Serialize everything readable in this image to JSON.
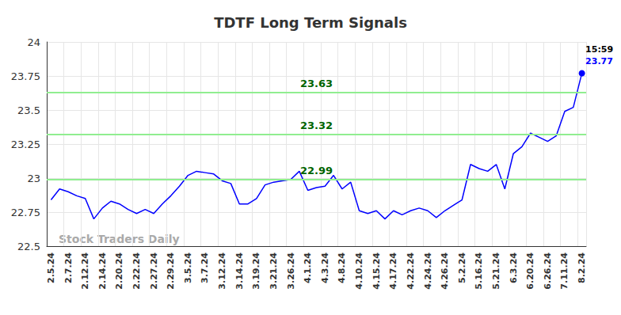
{
  "chart_data": {
    "type": "line",
    "title": "TDTF Long Term Signals",
    "watermark": "Stock Traders Daily",
    "last_label": "15:59",
    "color": "#0000ff",
    "grid": true,
    "categories": [
      "2.5.24",
      null,
      "2.7.24",
      null,
      "2.12.24",
      null,
      "2.14.24",
      null,
      "2.20.24",
      null,
      "2.22.24",
      null,
      "2.27.24",
      null,
      "2.29.24",
      null,
      "3.5.24",
      null,
      "3.7.24",
      null,
      "3.12.24",
      null,
      "3.14.24",
      null,
      "3.19.24",
      null,
      "3.21.24",
      null,
      "3.26.24",
      null,
      "4.1.24",
      null,
      "4.3.24",
      null,
      "4.8.24",
      null,
      "4.10.24",
      null,
      "4.15.24",
      null,
      "4.17.24",
      null,
      "4.22.24",
      null,
      "4.24.24",
      null,
      "4.26.24",
      null,
      "5.2.24",
      null,
      "5.16.24",
      null,
      "5.21.24",
      null,
      "6.3.24",
      null,
      "6.20.24",
      null,
      "6.26.24",
      null,
      "7.11.24",
      null,
      "8.2.24"
    ],
    "values": [
      22.84,
      22.92,
      22.9,
      22.87,
      22.85,
      22.7,
      22.78,
      22.83,
      22.81,
      22.77,
      22.74,
      22.77,
      22.74,
      22.81,
      22.87,
      22.94,
      23.02,
      23.05,
      23.04,
      23.03,
      22.98,
      22.96,
      22.81,
      22.81,
      22.85,
      22.95,
      22.97,
      22.98,
      22.99,
      23.05,
      22.91,
      22.93,
      22.94,
      23.02,
      22.92,
      22.97,
      22.76,
      22.74,
      22.76,
      22.7,
      22.76,
      22.73,
      22.76,
      22.78,
      22.76,
      22.71,
      22.76,
      22.8,
      22.84,
      23.1,
      23.07,
      23.05,
      23.1,
      22.92,
      23.18,
      23.23,
      23.33,
      23.3,
      23.27,
      23.31,
      23.49,
      23.52,
      23.77
    ],
    "reference_lines": [
      23.63,
      23.32,
      22.99
    ],
    "ylim": [
      22.5,
      24
    ],
    "yticks": [
      22.5,
      22.75,
      23,
      23.25,
      23.5,
      23.75,
      24
    ]
  }
}
